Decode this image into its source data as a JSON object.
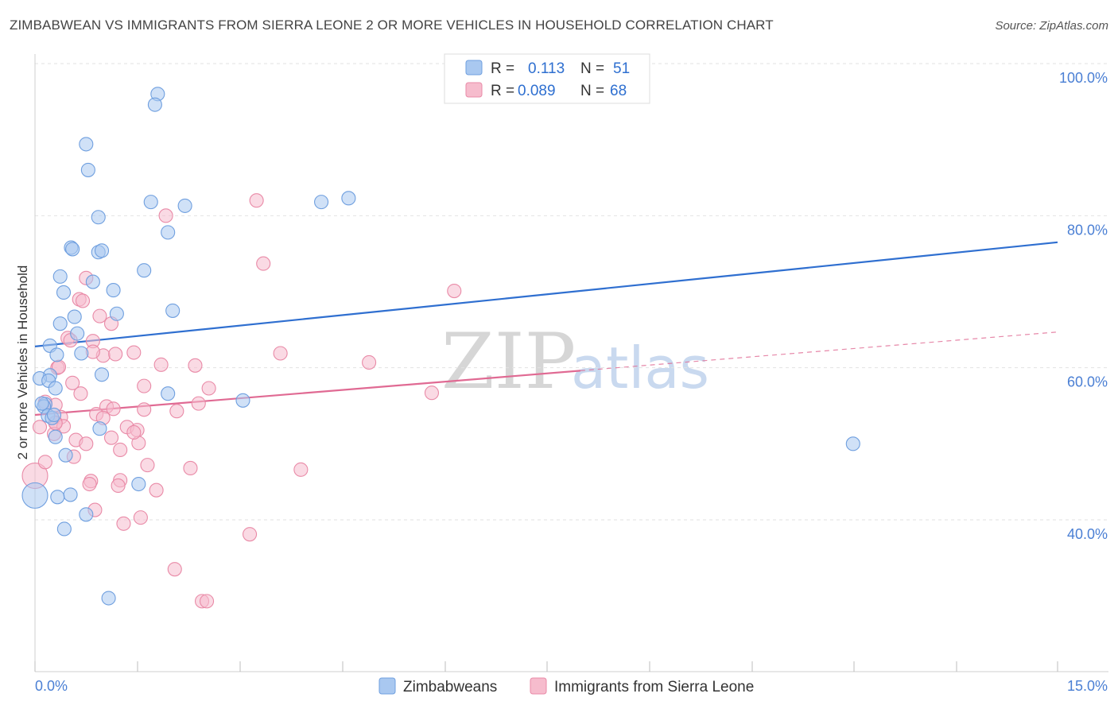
{
  "header": {
    "title": "ZIMBABWEAN VS IMMIGRANTS FROM SIERRA LEONE 2 OR MORE VEHICLES IN HOUSEHOLD CORRELATION CHART",
    "source": "Source: ZipAtlas.com"
  },
  "colors": {
    "blue_fill": "#a9c8f0",
    "blue_stroke": "#6f9fdf",
    "blue_line": "#2f6fd0",
    "pink_fill": "#f6bccd",
    "pink_stroke": "#e98aa7",
    "pink_line": "#e06a93",
    "grid": "#e2e2e2",
    "tick_text": "#4a7fd4"
  },
  "legend": {
    "r_label": "R =",
    "n_label": "N =",
    "series": [
      {
        "name": "Zimbabweans",
        "r": "0.113",
        "n": "51"
      },
      {
        "name": "Immigrants from Sierra Leone",
        "r": "0.089",
        "n": "68"
      }
    ]
  },
  "watermark": {
    "zip": "ZIP",
    "atlas": "atlas"
  },
  "chart_data": {
    "type": "scatter",
    "title": "ZIMBABWEAN VS IMMIGRANTS FROM SIERRA LEONE 2 OR MORE VEHICLES IN HOUSEHOLD CORRELATION CHART",
    "xlabel": "",
    "ylabel": "2 or more Vehicles in Household",
    "xlim": [
      0,
      15
    ],
    "ylim": [
      20,
      102
    ],
    "x_tick_labels": {
      "min": "0.0%",
      "max": "15.0%"
    },
    "y_ticks": [
      {
        "value": 100,
        "label": "100.0%"
      },
      {
        "value": 80,
        "label": "80.0%"
      },
      {
        "value": 60,
        "label": "60.0%"
      },
      {
        "value": 40,
        "label": "40.0%"
      }
    ],
    "grid": true,
    "series": [
      {
        "name": "Zimbabweans",
        "trend": {
          "x0": 0,
          "y0": 62.8,
          "x1": 15,
          "y1": 76.5,
          "solid_to": 15
        },
        "points": [
          [
            1.8,
            96
          ],
          [
            1.76,
            94.6
          ],
          [
            0.75,
            89.4
          ],
          [
            0.78,
            86
          ],
          [
            1.7,
            81.8
          ],
          [
            2.2,
            81.3
          ],
          [
            4.2,
            81.8
          ],
          [
            4.6,
            82.3
          ],
          [
            0.93,
            79.8
          ],
          [
            1.95,
            77.8
          ],
          [
            0.53,
            75.8
          ],
          [
            0.55,
            75.6
          ],
          [
            0.93,
            75.2
          ],
          [
            0.98,
            75.4
          ],
          [
            1.6,
            72.8
          ],
          [
            0.37,
            72
          ],
          [
            0.85,
            71.3
          ],
          [
            1.15,
            70.2
          ],
          [
            0.42,
            69.9
          ],
          [
            1.2,
            67.1
          ],
          [
            2.02,
            67.5
          ],
          [
            0.58,
            66.7
          ],
          [
            0.37,
            65.8
          ],
          [
            0.62,
            64.5
          ],
          [
            0.22,
            62.9
          ],
          [
            0.32,
            61.7
          ],
          [
            0.68,
            61.9
          ],
          [
            0.98,
            59.1
          ],
          [
            0.22,
            59
          ],
          [
            0.07,
            58.6
          ],
          [
            0.2,
            58.3
          ],
          [
            0.3,
            57.3
          ],
          [
            1.95,
            56.6
          ],
          [
            3.05,
            55.7
          ],
          [
            0.15,
            55.2
          ],
          [
            0.13,
            54.9
          ],
          [
            0.19,
            53.7
          ],
          [
            0.25,
            53.4
          ],
          [
            0.95,
            52
          ],
          [
            0.3,
            50.9
          ],
          [
            0.45,
            48.5
          ],
          [
            1.52,
            44.7
          ],
          [
            0.52,
            43.3
          ],
          [
            0.33,
            43
          ],
          [
            0.0,
            43.2
          ],
          [
            0.75,
            40.7
          ],
          [
            0.43,
            38.8
          ],
          [
            1.08,
            29.7
          ],
          [
            12.0,
            50
          ],
          [
            0.28,
            53.8
          ],
          [
            0.1,
            55.3
          ]
        ]
      },
      {
        "name": "Immigrants from Sierra Leone",
        "trend": {
          "x0": 0,
          "y0": 53.8,
          "x1": 15,
          "y1": 64.7,
          "solid_to": 8.0
        },
        "points": [
          [
            3.25,
            82
          ],
          [
            1.92,
            80
          ],
          [
            3.35,
            73.7
          ],
          [
            0.75,
            71.8
          ],
          [
            6.15,
            70.1
          ],
          [
            0.65,
            69
          ],
          [
            0.7,
            68.8
          ],
          [
            0.95,
            66.8
          ],
          [
            1.12,
            65.8
          ],
          [
            0.48,
            63.9
          ],
          [
            0.52,
            63.6
          ],
          [
            0.85,
            63.5
          ],
          [
            0.33,
            60
          ],
          [
            1.0,
            61.6
          ],
          [
            1.18,
            61.8
          ],
          [
            1.45,
            62
          ],
          [
            3.6,
            61.9
          ],
          [
            4.9,
            60.7
          ],
          [
            1.85,
            60.4
          ],
          [
            2.35,
            60.3
          ],
          [
            0.55,
            58
          ],
          [
            1.6,
            57.6
          ],
          [
            2.55,
            57.3
          ],
          [
            0.67,
            56.6
          ],
          [
            5.82,
            56.7
          ],
          [
            0.15,
            55.5
          ],
          [
            0.3,
            55.1
          ],
          [
            1.05,
            54.9
          ],
          [
            1.15,
            54.6
          ],
          [
            1.6,
            54.5
          ],
          [
            2.08,
            54.3
          ],
          [
            2.4,
            55.3
          ],
          [
            0.9,
            53.9
          ],
          [
            0.38,
            53.5
          ],
          [
            0.3,
            52.8
          ],
          [
            1.0,
            53.4
          ],
          [
            0.42,
            52.3
          ],
          [
            1.35,
            52.2
          ],
          [
            1.5,
            51.8
          ],
          [
            0.07,
            52.2
          ],
          [
            0.28,
            51.3
          ],
          [
            1.12,
            50.8
          ],
          [
            0.6,
            50.5
          ],
          [
            0.75,
            50
          ],
          [
            1.52,
            50.1
          ],
          [
            1.25,
            49.2
          ],
          [
            0.57,
            48.3
          ],
          [
            1.65,
            47.2
          ],
          [
            2.28,
            46.8
          ],
          [
            3.9,
            46.6
          ],
          [
            0.0,
            45.8
          ],
          [
            0.82,
            45.1
          ],
          [
            0.8,
            44.7
          ],
          [
            1.25,
            45.2
          ],
          [
            1.78,
            43.9
          ],
          [
            0.88,
            41.3
          ],
          [
            1.55,
            40.3
          ],
          [
            1.3,
            39.5
          ],
          [
            3.15,
            38.1
          ],
          [
            2.05,
            33.5
          ],
          [
            2.45,
            29.3
          ],
          [
            2.52,
            29.3
          ],
          [
            0.15,
            47.6
          ],
          [
            0.35,
            60.1
          ],
          [
            0.85,
            62.1
          ],
          [
            0.3,
            52.7
          ],
          [
            1.45,
            51.5
          ],
          [
            1.22,
            44.5
          ]
        ]
      }
    ]
  }
}
